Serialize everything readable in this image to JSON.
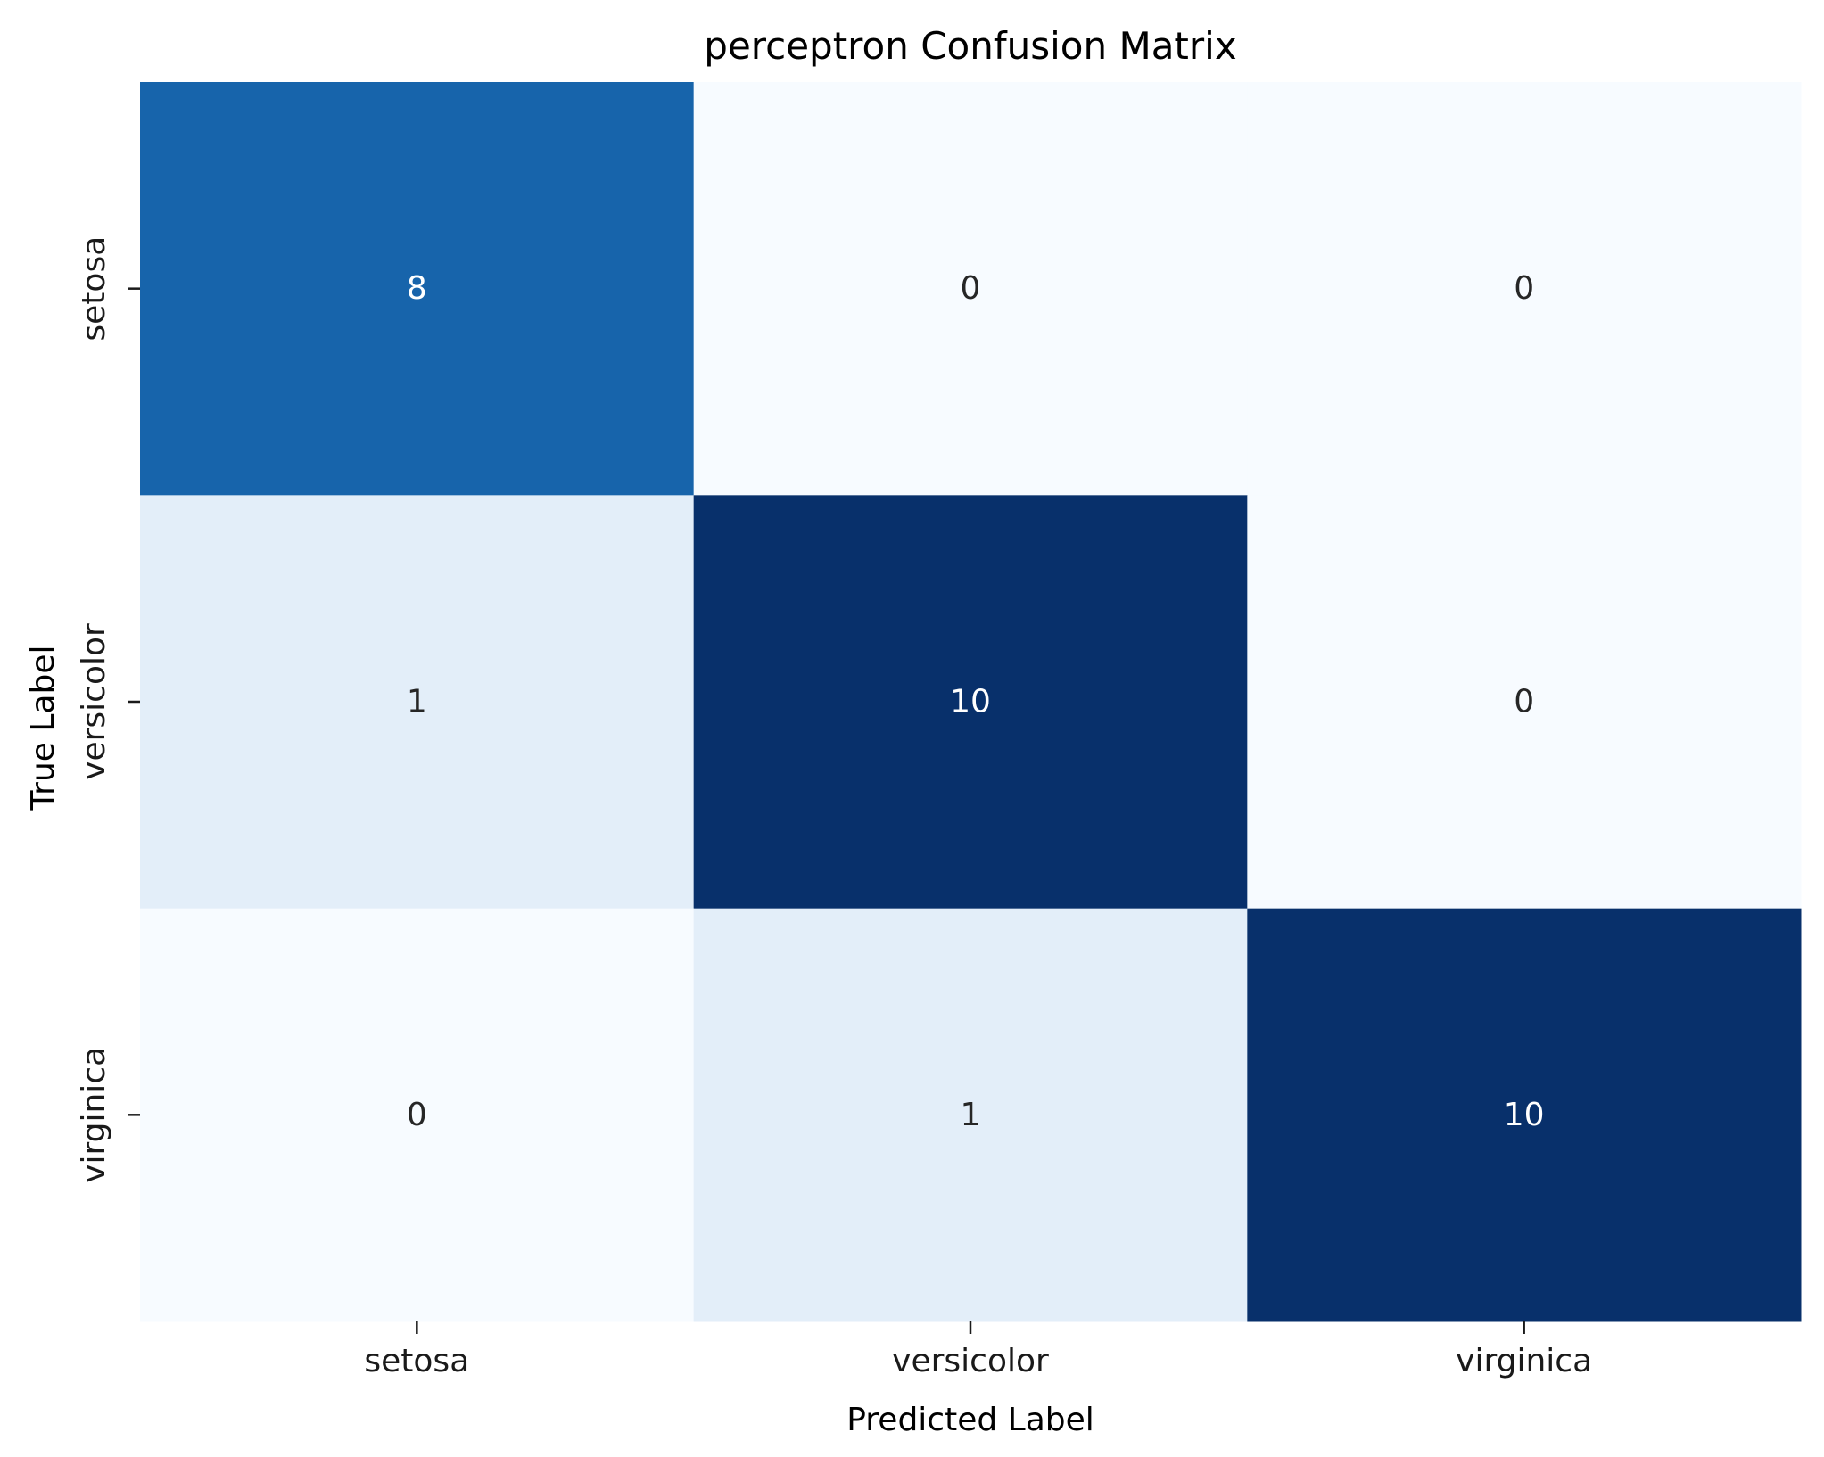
{
  "chart_data": {
    "type": "heatmap",
    "title": "perceptron Confusion Matrix",
    "xlabel": "Predicted Label",
    "ylabel": "True Label",
    "x_categories": [
      "setosa",
      "versicolor",
      "virginica"
    ],
    "y_categories": [
      "setosa",
      "versicolor",
      "virginica"
    ],
    "values": [
      [
        8,
        0,
        0
      ],
      [
        1,
        10,
        0
      ],
      [
        0,
        1,
        10
      ]
    ],
    "value_labels": [
      [
        "8",
        "0",
        "0"
      ],
      [
        "1",
        "10",
        "0"
      ],
      [
        "0",
        "1",
        "10"
      ]
    ],
    "colormap": "Blues",
    "vmin": 0,
    "vmax": 10,
    "colorbar": false
  }
}
